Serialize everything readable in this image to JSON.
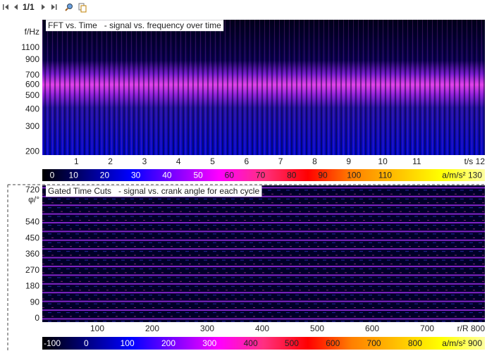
{
  "toolbar": {
    "page": "1/1"
  },
  "plots": [
    {
      "title": "FFT vs. Time   - signal vs. frequency over time",
      "y_label": "f/Hz",
      "log_y": true,
      "ylim": [
        189,
        1740
      ],
      "yticks": [
        200,
        300,
        400,
        500,
        600,
        700,
        900,
        1100
      ],
      "xlim": [
        0,
        13
      ],
      "xticks": [
        1,
        2,
        3,
        4,
        5,
        6,
        7,
        8,
        9,
        10,
        11,
        {
          "value": 12,
          "label": "t/s 12"
        }
      ],
      "colorbar": {
        "lim": [
          0,
          142
        ],
        "colors": [
          "#000000",
          "#000080",
          "#0000ff",
          "#8000ff",
          "#ff00ff",
          "#ff3080",
          "#ff0000",
          "#ff8000",
          "#ffc000",
          "#ffff00",
          "#ffffa0"
        ],
        "ticks": [
          0,
          10,
          20,
          30,
          40,
          50,
          60,
          70,
          80,
          90,
          100,
          110,
          {
            "value": 130,
            "label": "a/m/s² 130"
          }
        ]
      }
    },
    {
      "title": "Gated Time Cuts   - signal vs. crank angle for each cycle",
      "y_label": "φ/°",
      "log_y": false,
      "ylim": [
        -20,
        748
      ],
      "yticks": [
        0,
        90,
        180,
        270,
        360,
        450,
        540,
        720
      ],
      "xlim": [
        0,
        805
      ],
      "xticks": [
        100,
        200,
        300,
        400,
        500,
        600,
        700,
        {
          "value": 800,
          "label": "r/R 800"
        }
      ],
      "colorbar": {
        "lim": [
          -107,
          970
        ],
        "colors": [
          "#000000",
          "#000080",
          "#0000ff",
          "#8000ff",
          "#ff00ff",
          "#ff3080",
          "#ff0000",
          "#ff8000",
          "#ffc000",
          "#ffff00",
          "#ffffa0"
        ],
        "ticks": [
          -100,
          0,
          100,
          200,
          300,
          400,
          500,
          600,
          700,
          800,
          {
            "value": 900,
            "label": "a/m/s² 900"
          }
        ]
      }
    }
  ]
}
